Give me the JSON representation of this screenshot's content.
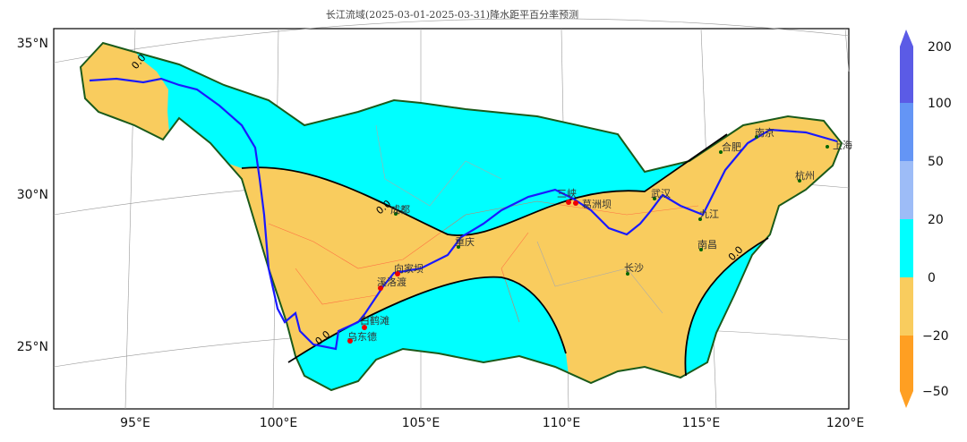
{
  "title": "长江流域(2025-03-01-2025-03-31)降水距平百分率预测",
  "axes": {
    "lon_ticks": [
      "95°E",
      "100°E",
      "105°E",
      "110°E",
      "115°E",
      "120°E"
    ],
    "lat_ticks": [
      "35°N",
      "30°N",
      "25°N"
    ]
  },
  "colorbar": {
    "ticks": [
      "200",
      "100",
      "50",
      "20",
      "0",
      "−20",
      "−50"
    ],
    "colors": [
      "#5b5be6",
      "#6495f5",
      "#9dbcf7",
      "#00ffff",
      "#f9cc5e",
      "#ff9f22"
    ]
  },
  "contour_label": "0.0",
  "cities": [
    {
      "name": "成都"
    },
    {
      "name": "重庆"
    },
    {
      "name": "三峡"
    },
    {
      "name": "葛洲坝"
    },
    {
      "name": "武汉"
    },
    {
      "name": "九江"
    },
    {
      "name": "南京"
    },
    {
      "name": "合肥"
    },
    {
      "name": "上海"
    },
    {
      "name": "杭州"
    },
    {
      "name": "南昌"
    },
    {
      "name": "长沙"
    },
    {
      "name": "向家坝"
    },
    {
      "name": "溪洛渡"
    },
    {
      "name": "白鹤滩"
    },
    {
      "name": "乌东德"
    }
  ]
}
